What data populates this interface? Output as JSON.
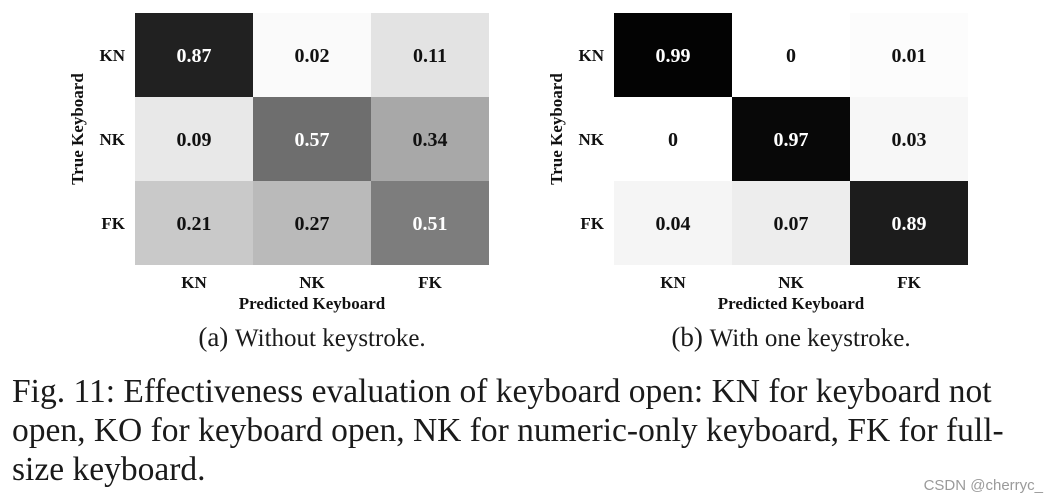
{
  "chart_data": [
    {
      "type": "heatmap",
      "title": "",
      "subcaption_label": "(a)",
      "subcaption_text": "Without keystroke.",
      "xlabel": "Predicted Keyboard",
      "ylabel": "True Keyboard",
      "x_categories": [
        "KN",
        "NK",
        "FK"
      ],
      "y_categories": [
        "KN",
        "NK",
        "FK"
      ],
      "values": [
        [
          0.87,
          0.02,
          0.11
        ],
        [
          0.09,
          0.57,
          0.34
        ],
        [
          0.21,
          0.27,
          0.51
        ]
      ],
      "colormap": "greys",
      "vmin": 0,
      "vmax": 1
    },
    {
      "type": "heatmap",
      "title": "",
      "subcaption_label": "(b)",
      "subcaption_text": "With one keystroke.",
      "xlabel": "Predicted Keyboard",
      "ylabel": "True Keyboard",
      "x_categories": [
        "KN",
        "NK",
        "FK"
      ],
      "y_categories": [
        "KN",
        "NK",
        "FK"
      ],
      "values": [
        [
          0.99,
          0,
          0.01
        ],
        [
          0,
          0.97,
          0.03
        ],
        [
          0.04,
          0.07,
          0.89
        ]
      ],
      "colormap": "greys",
      "vmin": 0,
      "vmax": 1
    }
  ],
  "caption": "Fig. 11: Effectiveness evaluation of keyboard open: KN for keyboard not open, KO for keyboard open, NK for numeric-only keyboard, FK for full-size keyboard.",
  "watermark": "CSDN @cherryc_"
}
